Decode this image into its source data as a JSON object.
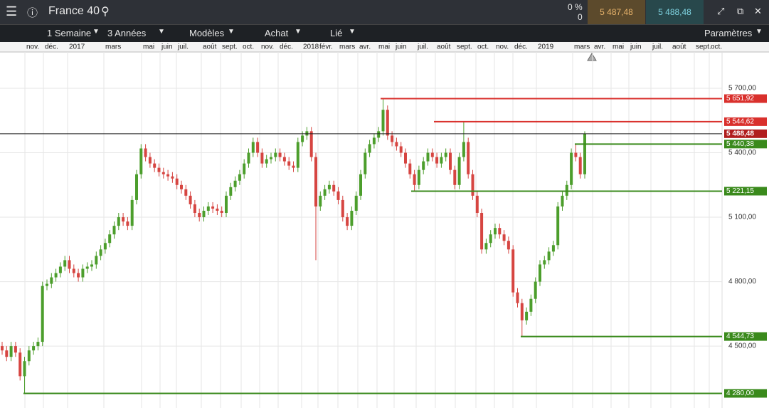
{
  "toolbar": {
    "instrument": "France 40",
    "change_pct": "0 %",
    "change_abs": "0",
    "sell_price": "5 487,48",
    "buy_price": "5 488,48",
    "interval": "1 Semaine",
    "range": "3 Années",
    "templates": "Modèles",
    "order": "Achat",
    "link": "Lié",
    "settings": "Paramètres"
  },
  "chart_data": {
    "type": "candlestick",
    "x_labels": [
      "nov.",
      "déc.",
      "2017",
      "mars",
      "mai",
      "juin",
      "juil.",
      "août",
      "sept.",
      "oct.",
      "nov.",
      "déc.",
      "2018",
      "févr.",
      "mars",
      "avr.",
      "mai",
      "juin",
      "juil.",
      "août",
      "sept.",
      "oct.",
      "nov.",
      "déc.",
      "2019",
      "mars",
      "avr.",
      "mai",
      "juin",
      "juil.",
      "août",
      "sept.",
      "oct."
    ],
    "open": [
      4500,
      4480,
      4450,
      4500,
      4470,
      4360,
      4430,
      4480,
      4500,
      4520,
      4780,
      4790,
      4820,
      4840,
      4870,
      4900,
      4860,
      4840,
      4820,
      4860,
      4870,
      4880,
      4920,
      4950,
      4980,
      5020,
      5060,
      5100,
      5080,
      5060,
      5180,
      5300,
      5420,
      5380,
      5350,
      5330,
      5310,
      5300,
      5290,
      5280,
      5250,
      5230,
      5200,
      5160,
      5120,
      5100,
      5130,
      5150,
      5140,
      5130,
      5120,
      5200,
      5240,
      5270,
      5300,
      5350,
      5400,
      5450,
      5400,
      5350,
      5370,
      5380,
      5400,
      5380,
      5360,
      5340,
      5330,
      5450,
      5480,
      5500,
      5380,
      5150,
      5200,
      5230,
      5250,
      5220,
      5180,
      5100,
      5060,
      5130,
      5200,
      5300,
      5400,
      5440,
      5470,
      5500,
      5600,
      5480,
      5450,
      5430,
      5400,
      5350,
      5300,
      5250,
      5320,
      5360,
      5400,
      5380,
      5350,
      5380,
      5400,
      5320,
      5250,
      5380,
      5450,
      5300,
      5200,
      5120,
      4950,
      4980,
      5020,
      5050,
      5020,
      4990,
      4950,
      4750,
      4700,
      4620,
      4660,
      4720,
      4800,
      4880,
      4900,
      4940,
      4970,
      5150,
      5200,
      5250,
      5400,
      5380,
      5300
    ],
    "high": [
      4520,
      4500,
      4520,
      4520,
      4490,
      4450,
      4500,
      4520,
      4540,
      4800,
      4810,
      4840,
      4860,
      4890,
      4920,
      4920,
      4880,
      4860,
      4880,
      4890,
      4900,
      4940,
      4970,
      5000,
      5040,
      5080,
      5120,
      5120,
      5100,
      5200,
      5320,
      5440,
      5440,
      5400,
      5370,
      5350,
      5330,
      5320,
      5310,
      5300,
      5270,
      5250,
      5220,
      5180,
      5140,
      5150,
      5170,
      5170,
      5160,
      5150,
      5220,
      5260,
      5290,
      5320,
      5370,
      5420,
      5470,
      5470,
      5420,
      5390,
      5400,
      5420,
      5420,
      5400,
      5380,
      5360,
      5470,
      5500,
      5520,
      5520,
      5400,
      5220,
      5250,
      5270,
      5270,
      5240,
      5200,
      5120,
      5150,
      5220,
      5320,
      5420,
      5460,
      5490,
      5520,
      5651.92,
      5620,
      5500,
      5470,
      5450,
      5420,
      5370,
      5320,
      5340,
      5380,
      5420,
      5420,
      5400,
      5400,
      5420,
      5420,
      5340,
      5400,
      5544.62,
      5470,
      5320,
      5220,
      5140,
      5000,
      5040,
      5070,
      5070,
      5040,
      5010,
      4970,
      4770,
      4720,
      4680,
      4740,
      4820,
      4900,
      4920,
      4960,
      4990,
      5170,
      5220,
      5270,
      5420,
      5440.38,
      5400,
      5500
    ],
    "low": [
      4460,
      4430,
      4430,
      4450,
      4340,
      4280,
      4410,
      4460,
      4480,
      4500,
      4760,
      4770,
      4800,
      4820,
      4850,
      4840,
      4820,
      4800,
      4800,
      4840,
      4850,
      4860,
      4900,
      4930,
      4960,
      5000,
      5040,
      5060,
      5040,
      5040,
      5160,
      5280,
      5360,
      5330,
      5310,
      5290,
      5280,
      5270,
      5260,
      5230,
      5210,
      5180,
      5140,
      5100,
      5080,
      5080,
      5110,
      5120,
      5110,
      5100,
      5100,
      5180,
      5220,
      5250,
      5280,
      5330,
      5380,
      5380,
      5330,
      5330,
      5350,
      5360,
      5360,
      5340,
      5320,
      5310,
      5310,
      5430,
      5460,
      5360,
      4900,
      5130,
      5180,
      5210,
      5200,
      5160,
      5080,
      5040,
      5040,
      5110,
      5180,
      5280,
      5380,
      5420,
      5450,
      5480,
      5460,
      5430,
      5410,
      5380,
      5330,
      5280,
      5221.15,
      5230,
      5300,
      5340,
      5360,
      5330,
      5330,
      5360,
      5300,
      5230,
      5230,
      5360,
      5280,
      5180,
      5100,
      4930,
      4930,
      4960,
      5000,
      5000,
      4970,
      4930,
      4730,
      4680,
      4544.73,
      4600,
      4640,
      4700,
      4780,
      4860,
      4880,
      4920,
      4950,
      5130,
      5180,
      5230,
      5360,
      5280,
      5280
    ],
    "close": [
      4480,
      4450,
      4500,
      4470,
      4360,
      4430,
      4480,
      4500,
      4520,
      4780,
      4790,
      4820,
      4840,
      4870,
      4900,
      4860,
      4840,
      4820,
      4860,
      4870,
      4880,
      4920,
      4950,
      4980,
      5020,
      5060,
      5100,
      5080,
      5060,
      5180,
      5300,
      5420,
      5380,
      5350,
      5330,
      5310,
      5300,
      5290,
      5280,
      5250,
      5230,
      5200,
      5160,
      5120,
      5100,
      5130,
      5150,
      5140,
      5130,
      5120,
      5200,
      5240,
      5270,
      5300,
      5350,
      5400,
      5450,
      5400,
      5350,
      5370,
      5380,
      5400,
      5380,
      5360,
      5340,
      5330,
      5450,
      5480,
      5500,
      5380,
      5150,
      5200,
      5230,
      5250,
      5220,
      5180,
      5100,
      5060,
      5130,
      5200,
      5300,
      5400,
      5440,
      5470,
      5500,
      5600,
      5480,
      5450,
      5430,
      5400,
      5350,
      5300,
      5250,
      5320,
      5360,
      5400,
      5380,
      5350,
      5380,
      5400,
      5320,
      5250,
      5380,
      5450,
      5300,
      5200,
      5120,
      4950,
      4980,
      5020,
      5050,
      5020,
      4990,
      4950,
      4750,
      4700,
      4620,
      4660,
      4720,
      4800,
      4880,
      4900,
      4940,
      4970,
      5150,
      5200,
      5250,
      5400,
      5380,
      5300,
      5488.48
    ],
    "up_color": "#4c9e2c",
    "down_color": "#d64541",
    "ylim": [
      4212,
      5869
    ],
    "yticks": [
      {
        "value": 5700,
        "label": "5 700,00"
      },
      {
        "value": 5400,
        "label": "5 400,00"
      },
      {
        "value": 5100,
        "label": "5 100,00"
      },
      {
        "value": 4800,
        "label": "4 800,00"
      },
      {
        "value": 4500,
        "label": "4 500,00"
      }
    ],
    "grid": true,
    "levels": [
      {
        "value": 5651.92,
        "label": "5 651,92",
        "color": "#d9302c"
      },
      {
        "value": 5544.62,
        "label": "5 544,62",
        "color": "#d9302c"
      },
      {
        "value": 5488.48,
        "label": "5 488,48",
        "color": "#1c1c1c",
        "label_color": "#b01e1e"
      },
      {
        "value": 5440.38,
        "label": "5 440,38",
        "color": "#3a8a1c"
      },
      {
        "value": 5221.15,
        "label": "5 221,15",
        "color": "#3a8a1c"
      },
      {
        "value": 4544.73,
        "label": "4 544,73",
        "color": "#3a8a1c"
      },
      {
        "value": 4280,
        "label": "4 280,00",
        "color": "#3a8a1c"
      }
    ]
  }
}
